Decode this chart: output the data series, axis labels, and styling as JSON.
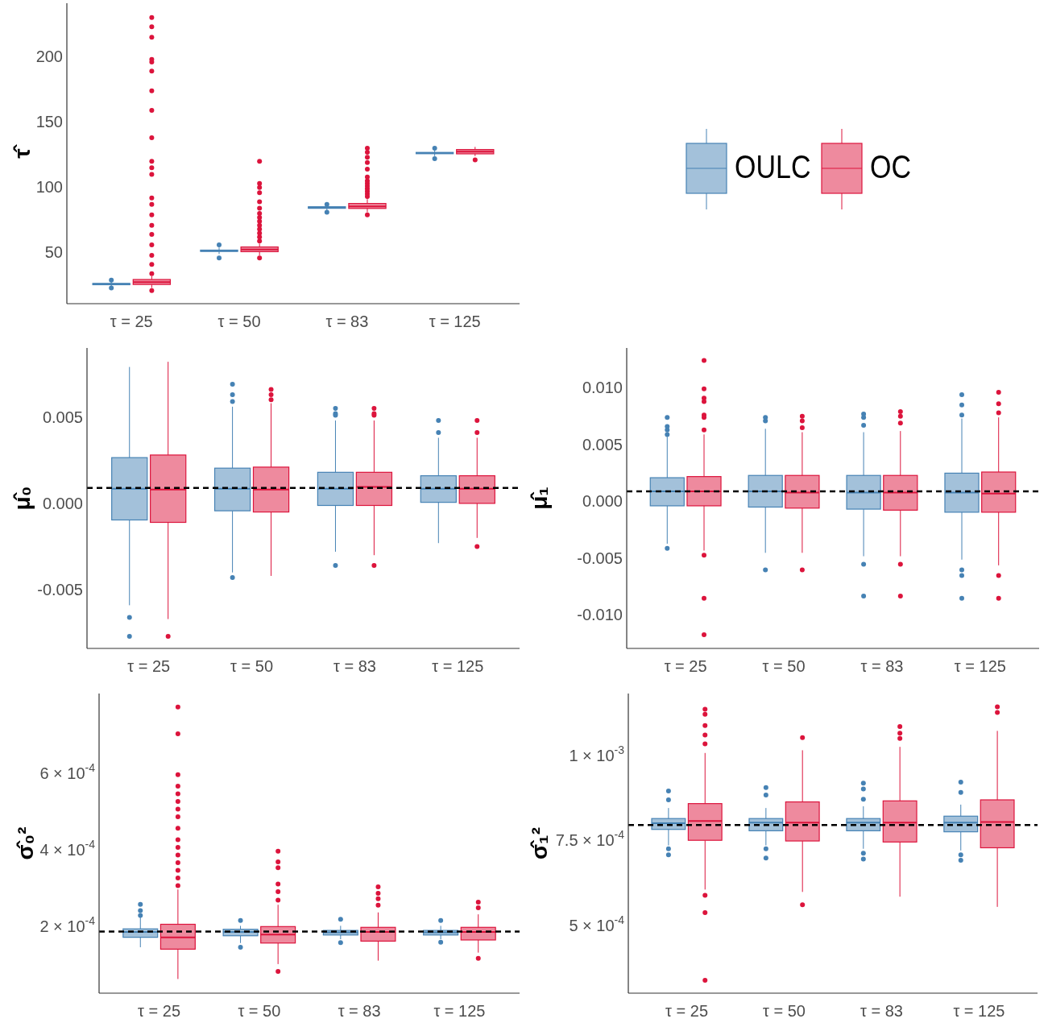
{
  "chart_data": [
    {
      "type": "box",
      "ylabel": "τ̂",
      "categories": [
        "τ = 25",
        "τ = 50",
        "τ = 83",
        "τ = 125"
      ],
      "ylim": [
        12,
        242
      ],
      "yticks": [
        50,
        100,
        150,
        200
      ],
      "legend": "right",
      "series": [
        {
          "name": "OULC",
          "color": "#4682b4",
          "boxes": [
            {
              "low": 25,
              "q1": 26.5,
              "median": 27,
              "q3": 27.5,
              "high": 29,
              "outliers": [
                24,
                30
              ]
            },
            {
              "low": 50,
              "q1": 52,
              "median": 52.5,
              "q3": 53,
              "high": 55,
              "outliers": [
                47,
                57
              ]
            },
            {
              "low": 83.5,
              "q1": 85,
              "median": 85.6,
              "q3": 86.2,
              "high": 87.5,
              "outliers": [
                82,
                88
              ]
            },
            {
              "low": 125,
              "q1": 126.8,
              "median": 127.3,
              "q3": 127.8,
              "high": 129.5,
              "outliers": [
                123,
                131
              ]
            }
          ]
        },
        {
          "name": "OC",
          "color": "#dc143c",
          "boxes": [
            {
              "low": 24,
              "q1": 26.7,
              "median": 28.5,
              "q3": 30.5,
              "high": 33,
              "outliers": [
                22,
                35,
                42,
                49,
                57,
                65,
                72,
                80,
                88,
                93,
                111,
                116,
                121,
                139,
                160,
                175,
                190,
                197,
                199,
                216,
                224,
                231
              ]
            },
            {
              "low": 49,
              "q1": 51.8,
              "median": 53.5,
              "q3": 55.4,
              "high": 58,
              "outliers": [
                47,
                60,
                63,
                66,
                69,
                72,
                75,
                78,
                81,
                85,
                90,
                97,
                101,
                104,
                121
              ]
            },
            {
              "low": 82,
              "q1": 84.9,
              "median": 86.5,
              "q3": 88.7,
              "high": 92,
              "outliers": [
                80,
                94,
                96,
                98,
                100,
                102,
                104,
                106,
                109,
                115,
                120,
                124,
                128,
                131
              ]
            },
            {
              "low": 125,
              "q1": 126.7,
              "median": 128.4,
              "q3": 130,
              "high": 132,
              "outliers": [
                122
              ]
            }
          ]
        }
      ]
    },
    {
      "type": "box",
      "ylabel": "μ̂₀",
      "categories": [
        "τ = 25",
        "τ = 50",
        "τ = 83",
        "τ = 125"
      ],
      "ylim": [
        -0.0083,
        0.0091
      ],
      "yticks": [
        {
          "value": -0.005,
          "label": "-0.005"
        },
        {
          "value": 0,
          "label": "0.000"
        },
        {
          "value": 0.005,
          "label": "0.005"
        }
      ],
      "ref_lines": [
        {
          "axis": "y",
          "value": 0.001,
          "line_style": "dashed",
          "color": "#000000"
        }
      ],
      "series": [
        {
          "color": "#4682b4",
          "boxes": [
            {
              "low": -0.0058,
              "q1": -0.00086,
              "median": 0.00095,
              "q3": 0.00275,
              "high": 0.008,
              "outliers": [
                -0.0065,
                -0.0076
              ]
            },
            {
              "low": -0.0039,
              "q1": -0.00033,
              "median": 0.00095,
              "q3": 0.00214,
              "high": 0.0057,
              "outliers": [
                0.006,
                0.0064,
                0.007,
                -0.0042
              ]
            },
            {
              "low": -0.0027,
              "q1": -2e-05,
              "median": 0.00095,
              "q3": 0.0019,
              "high": 0.0049,
              "outliers": [
                0.0052,
                0.0053,
                0.0056,
                -0.0035
              ]
            },
            {
              "low": -0.0022,
              "q1": 0.00016,
              "median": 0.00095,
              "q3": 0.0017,
              "high": 0.0039,
              "outliers": [
                0.0042,
                0.0049
              ]
            }
          ]
        },
        {
          "color": "#dc143c",
          "boxes": [
            {
              "low": -0.0066,
              "q1": -0.001,
              "median": 0.0009,
              "q3": 0.0029,
              "high": 0.0083,
              "outliers": [
                -0.0076
              ]
            },
            {
              "low": -0.0041,
              "q1": -0.0004,
              "median": 0.0009,
              "q3": 0.0022,
              "high": 0.0059,
              "outliers": [
                0.0061,
                0.0064,
                0.0067
              ]
            },
            {
              "low": -0.0029,
              "q1": -2e-05,
              "median": 0.00105,
              "q3": 0.0019,
              "high": 0.0049,
              "outliers": [
                0.0052,
                0.0053,
                0.0056,
                -0.0035
              ]
            },
            {
              "low": -0.0019,
              "q1": 0.0001,
              "median": 0.00095,
              "q3": 0.0017,
              "high": 0.0039,
              "outliers": [
                0.0042,
                0.0049,
                -0.0024
              ]
            }
          ]
        }
      ]
    },
    {
      "type": "box",
      "ylabel": "μ̂₁",
      "categories": [
        "τ = 25",
        "τ = 50",
        "τ = 83",
        "τ = 125"
      ],
      "ylim": [
        -0.0128,
        0.0136
      ],
      "yticks": [
        {
          "value": -0.01,
          "label": "-0.010"
        },
        {
          "value": -0.005,
          "label": "-0.005"
        },
        {
          "value": 0,
          "label": "0.000"
        },
        {
          "value": 0.005,
          "label": "0.005"
        },
        {
          "value": 0.01,
          "label": "0.010"
        }
      ],
      "ref_lines": [
        {
          "axis": "y",
          "value": 0.001,
          "line_style": "dashed",
          "color": "#000000"
        }
      ],
      "series": [
        {
          "color": "#4682b4",
          "boxes": [
            {
              "low": -0.0036,
              "q1": -0.00027,
              "median": 0.001,
              "q3": 0.0022,
              "high": 0.0058,
              "outliers": [
                0.006,
                0.0064,
                0.0067,
                0.0075,
                -0.004
              ]
            },
            {
              "low": -0.0044,
              "q1": -0.00038,
              "median": 0.001,
              "q3": 0.0024,
              "high": 0.0065,
              "outliers": [
                0.0072,
                0.0075,
                -0.0059
              ]
            },
            {
              "low": -0.0047,
              "q1": -0.00056,
              "median": 0.0009,
              "q3": 0.0024,
              "high": 0.0062,
              "outliers": [
                0.0068,
                0.0075,
                0.0078,
                -0.0054,
                -0.0082
              ]
            },
            {
              "low": -0.005,
              "q1": -0.00083,
              "median": 0.0009,
              "q3": 0.0026,
              "high": 0.0074,
              "outliers": [
                0.0077,
                0.0086,
                0.0095,
                -0.0059,
                -0.0064,
                -0.0084
              ]
            }
          ]
        },
        {
          "color": "#dc143c",
          "boxes": [
            {
              "low": -0.0042,
              "q1": -0.00027,
              "median": 0.001,
              "q3": 0.0023,
              "high": 0.006,
              "outliers": [
                0.0064,
                0.0075,
                0.0077,
                0.0089,
                0.0092,
                0.01,
                0.0125,
                -0.0046,
                -0.0084,
                -0.0116
              ]
            },
            {
              "low": -0.0044,
              "q1": -0.00047,
              "median": 0.0009,
              "q3": 0.0024,
              "high": 0.0062,
              "outliers": [
                0.0066,
                0.0072,
                0.0076,
                -0.0059
              ]
            },
            {
              "low": -0.0047,
              "q1": -0.00065,
              "median": 0.0009,
              "q3": 0.0024,
              "high": 0.0063,
              "outliers": [
                0.007,
                0.0076,
                0.008,
                -0.0054,
                -0.0082
              ]
            },
            {
              "low": -0.0055,
              "q1": -0.00083,
              "median": 0.0008,
              "q3": 0.0027,
              "high": 0.0075,
              "outliers": [
                0.0079,
                0.0087,
                0.0097,
                -0.0064,
                -0.0084
              ]
            }
          ]
        }
      ]
    },
    {
      "type": "box",
      "ylabel": "σ̂₀²",
      "categories": [
        "τ = 25",
        "τ = 50",
        "τ = 83",
        "τ = 125"
      ],
      "ylim": [
        2.9e-05,
        0.000812
      ],
      "yticks": [
        {
          "value": 0.0002,
          "label": "2 × 10$^{-4}$"
        },
        {
          "value": 0.0004,
          "label": "4 × 10$^{-4}$"
        },
        {
          "value": 0.0006,
          "label": "6 × 10$^{-4}$"
        }
      ],
      "ref_lines": [
        {
          "axis": "y",
          "value": 0.00019,
          "line_style": "dashed",
          "color": "#000000"
        }
      ],
      "series": [
        {
          "color": "#4682b4",
          "boxes": [
            {
              "low": 0.000149,
              "q1": 0.000175,
              "median": 0.000189,
              "q3": 0.000197,
              "high": 0.00023,
              "outliers": [
                0.000232,
                0.000245,
                0.000261
              ]
            },
            {
              "low": 0.00016,
              "q1": 0.000179,
              "median": 0.000189,
              "q3": 0.000196,
              "high": 0.000205,
              "outliers": [
                0.000219,
                0.000149
              ]
            },
            {
              "low": 0.00017,
              "q1": 0.000181,
              "median": 0.000188,
              "q3": 0.000193,
              "high": 0.000205,
              "outliers": [
                0.000222,
                0.000161
              ]
            },
            {
              "low": 0.00017,
              "q1": 0.000181,
              "median": 0.000188,
              "q3": 0.000193,
              "high": 0.000205,
              "outliers": [
                0.000219,
                0.000162
              ]
            }
          ]
        },
        {
          "color": "#dc143c",
          "boxes": [
            {
              "low": 6.6e-05,
              "q1": 0.000144,
              "median": 0.000175,
              "q3": 0.000209,
              "high": 0.0003,
              "outliers": [
                0.00031,
                0.00033,
                0.00035,
                0.00037,
                0.00039,
                0.00041,
                0.00043,
                0.00046,
                0.00049,
                0.00051,
                0.00053,
                0.00055,
                0.00057,
                0.0006,
                0.000707,
                0.000777
              ]
            },
            {
              "low": 0.000105,
              "q1": 0.00016,
              "median": 0.000182,
              "q3": 0.000203,
              "high": 0.00026,
              "outliers": [
                0.000272,
                0.000294,
                0.000314,
                0.000357,
                0.000372,
                0.0004,
                8.6e-05
              ]
            },
            {
              "low": 0.000114,
              "q1": 0.000165,
              "median": 0.000189,
              "q3": 0.000201,
              "high": 0.00024,
              "outliers": [
                0.000259,
                0.000276,
                0.00029,
                0.000307
              ]
            },
            {
              "low": 0.000135,
              "q1": 0.000168,
              "median": 0.000189,
              "q3": 0.000201,
              "high": 0.000235,
              "outliers": [
                0.000252,
                0.000267,
                0.00012
              ]
            }
          ]
        }
      ]
    },
    {
      "type": "box",
      "ylabel": "σ̂₁²",
      "categories": [
        "τ = 25",
        "τ = 50",
        "τ = 83",
        "τ = 125"
      ],
      "ylim": [
        0.000305,
        0.001187
      ],
      "yticks": [
        {
          "value": 0.0005,
          "label": "5 × 10$^{-4}$"
        },
        {
          "value": 0.00075,
          "label": "7.5 × 10$^{-4}$"
        },
        {
          "value": 0.001,
          "label": "1 × 10$^{-3}$"
        }
      ],
      "ref_lines": [
        {
          "axis": "y",
          "value": 0.0008,
          "line_style": "dashed",
          "color": "#000000"
        }
      ],
      "series": [
        {
          "color": "#4682b4",
          "boxes": [
            {
              "low": 0.00074,
              "q1": 0.000787,
              "median": 0.000805,
              "q3": 0.000819,
              "high": 0.00085,
              "outliers": [
                0.000874,
                0.0009,
                0.000712,
                0.00073
              ]
            },
            {
              "low": 0.00074,
              "q1": 0.000783,
              "median": 0.000807,
              "q3": 0.000819,
              "high": 0.00085,
              "outliers": [
                0.000888,
                0.00091,
                0.00073,
                0.000703
              ]
            },
            {
              "low": 0.00073,
              "q1": 0.000783,
              "median": 0.000807,
              "q3": 0.000819,
              "high": 0.000855,
              "outliers": [
                0.000876,
                0.000906,
                0.000923,
                0.000717,
                0.0007
              ]
            },
            {
              "low": 0.000725,
              "q1": 0.00078,
              "median": 0.000807,
              "q3": 0.000826,
              "high": 0.00086,
              "outliers": [
                0.000896,
                0.000926,
                0.000712,
                0.000696
              ]
            }
          ]
        },
        {
          "color": "#dc143c",
          "boxes": [
            {
              "low": 0.00061,
              "q1": 0.000755,
              "median": 0.000812,
              "q3": 0.000863,
              "high": 0.001012,
              "outliers": [
                0.001039,
                0.001065,
                0.001093,
                0.001126,
                0.001141,
                0.000593,
                0.000542,
                0.000343
              ]
            },
            {
              "low": 0.000603,
              "q1": 0.000753,
              "median": 0.000807,
              "q3": 0.000868,
              "high": 0.00102,
              "outliers": [
                0.001057,
                0.000565
              ]
            },
            {
              "low": 0.000589,
              "q1": 0.00075,
              "median": 0.000807,
              "q3": 0.000871,
              "high": 0.00103,
              "outliers": [
                0.001055,
                0.00107,
                0.00109
              ]
            },
            {
              "low": 0.000559,
              "q1": 0.000733,
              "median": 0.000809,
              "q3": 0.000874,
              "high": 0.001077,
              "outliers": [
                0.001131,
                0.001148
              ]
            }
          ]
        }
      ]
    }
  ]
}
